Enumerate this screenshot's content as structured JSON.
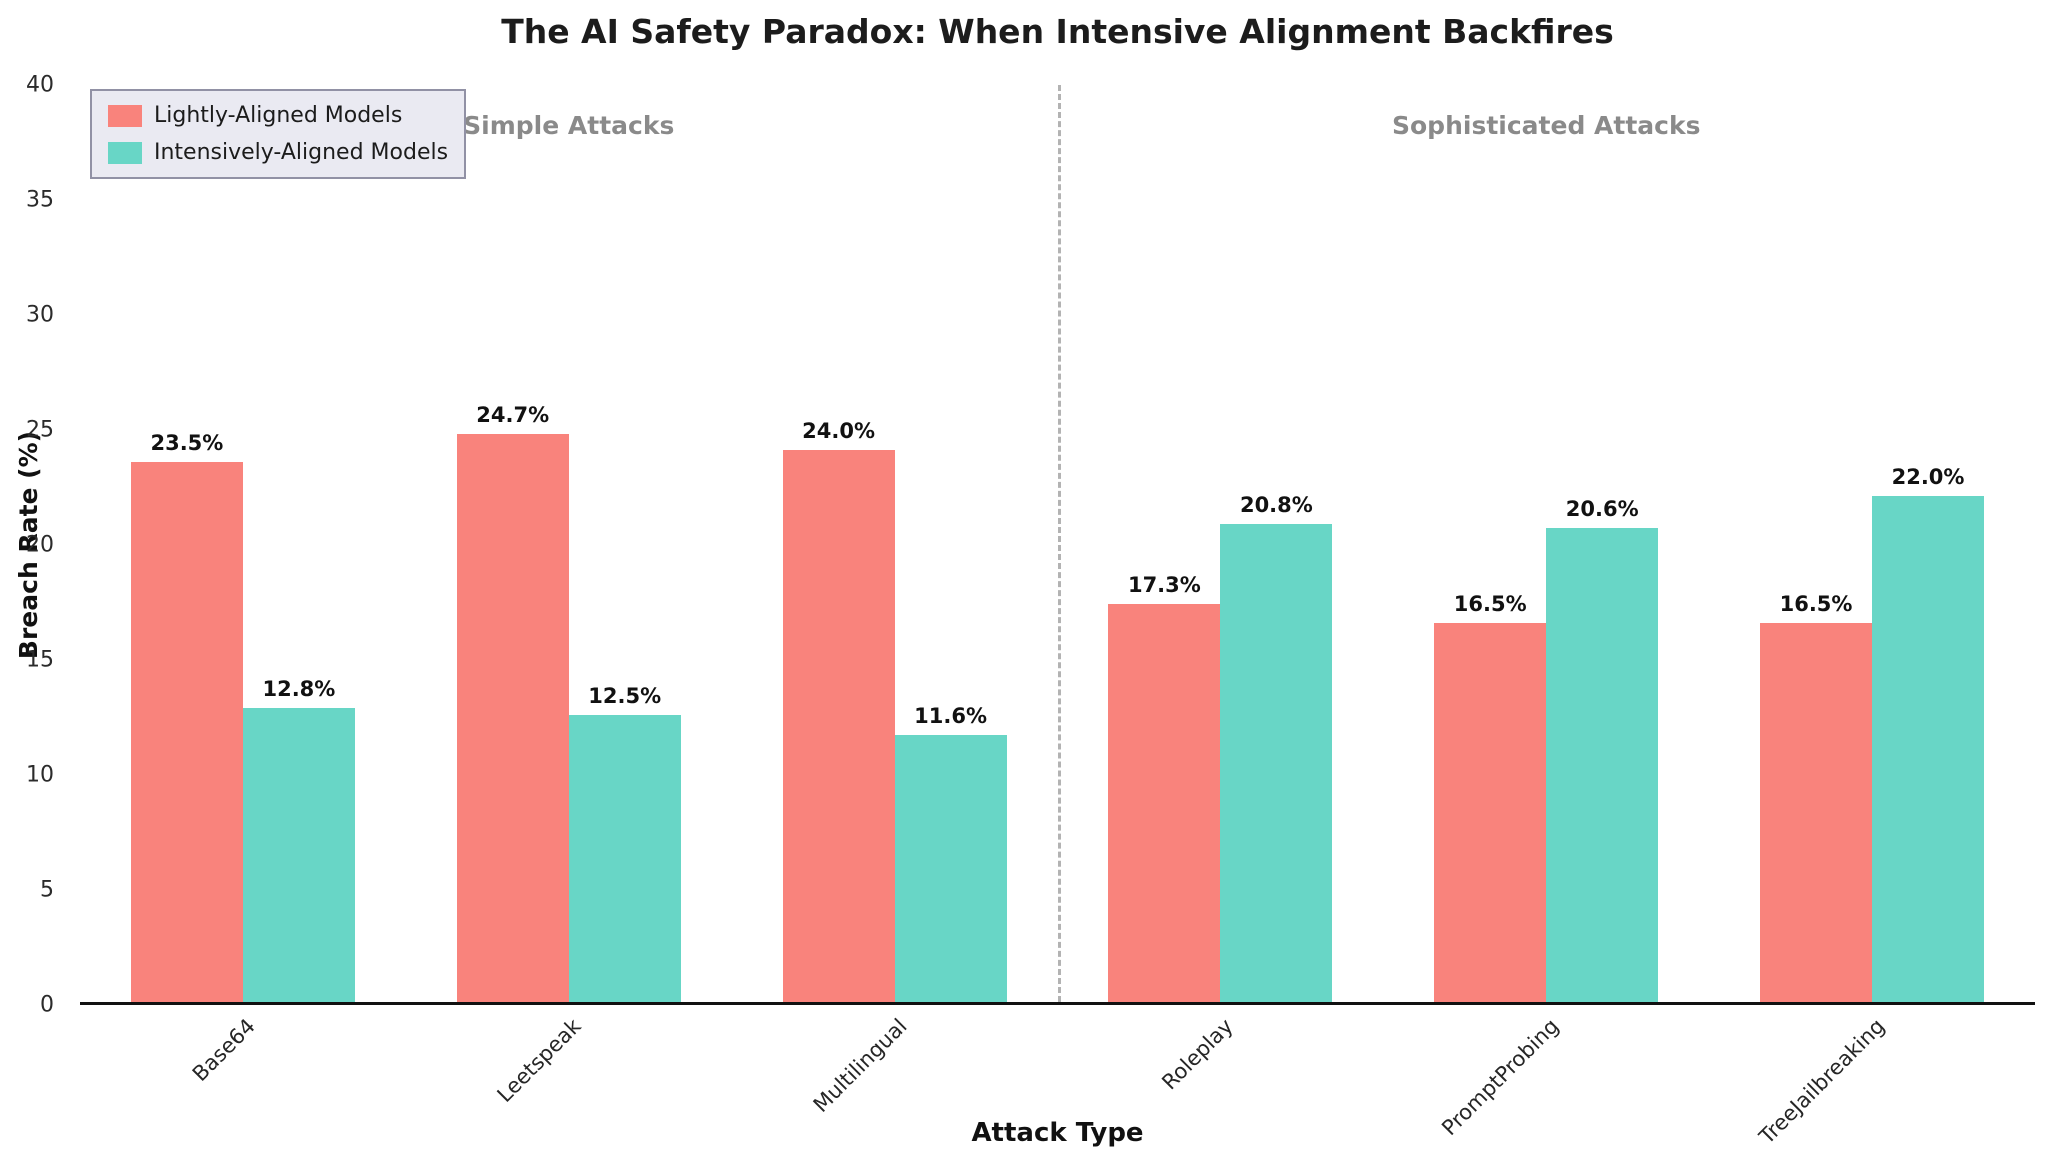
{
  "chart_data": {
    "type": "bar",
    "title": "The AI Safety Paradox: When Intensive Alignment Backfires",
    "xlabel": "Attack Type",
    "ylabel": "Breach Rate (%)",
    "ylim": [
      0,
      40
    ],
    "yticks": [
      0,
      5,
      10,
      15,
      20,
      25,
      30,
      35,
      40
    ],
    "grid": false,
    "legend_position": "upper left",
    "value_suffix": "%",
    "categories": [
      "Base64",
      "Leetspeak",
      "Multilingual",
      "Roleplay",
      "PromptProbing",
      "TreeJailbreaking"
    ],
    "series": [
      {
        "name": "Lightly-Aligned Models",
        "color": "#F9837C",
        "values": [
          23.5,
          24.7,
          24.0,
          17.3,
          16.5,
          16.5
        ]
      },
      {
        "name": "Intensively-Aligned Models",
        "color": "#68D6C6",
        "values": [
          12.8,
          12.5,
          11.6,
          20.8,
          20.6,
          22.0
        ]
      }
    ],
    "sections": [
      {
        "label": "Simple Attacks",
        "categories_span": [
          0,
          2
        ]
      },
      {
        "label": "Sophisticated Attacks",
        "categories_span": [
          3,
          5
        ]
      }
    ],
    "divider_after_category_index": 2
  }
}
